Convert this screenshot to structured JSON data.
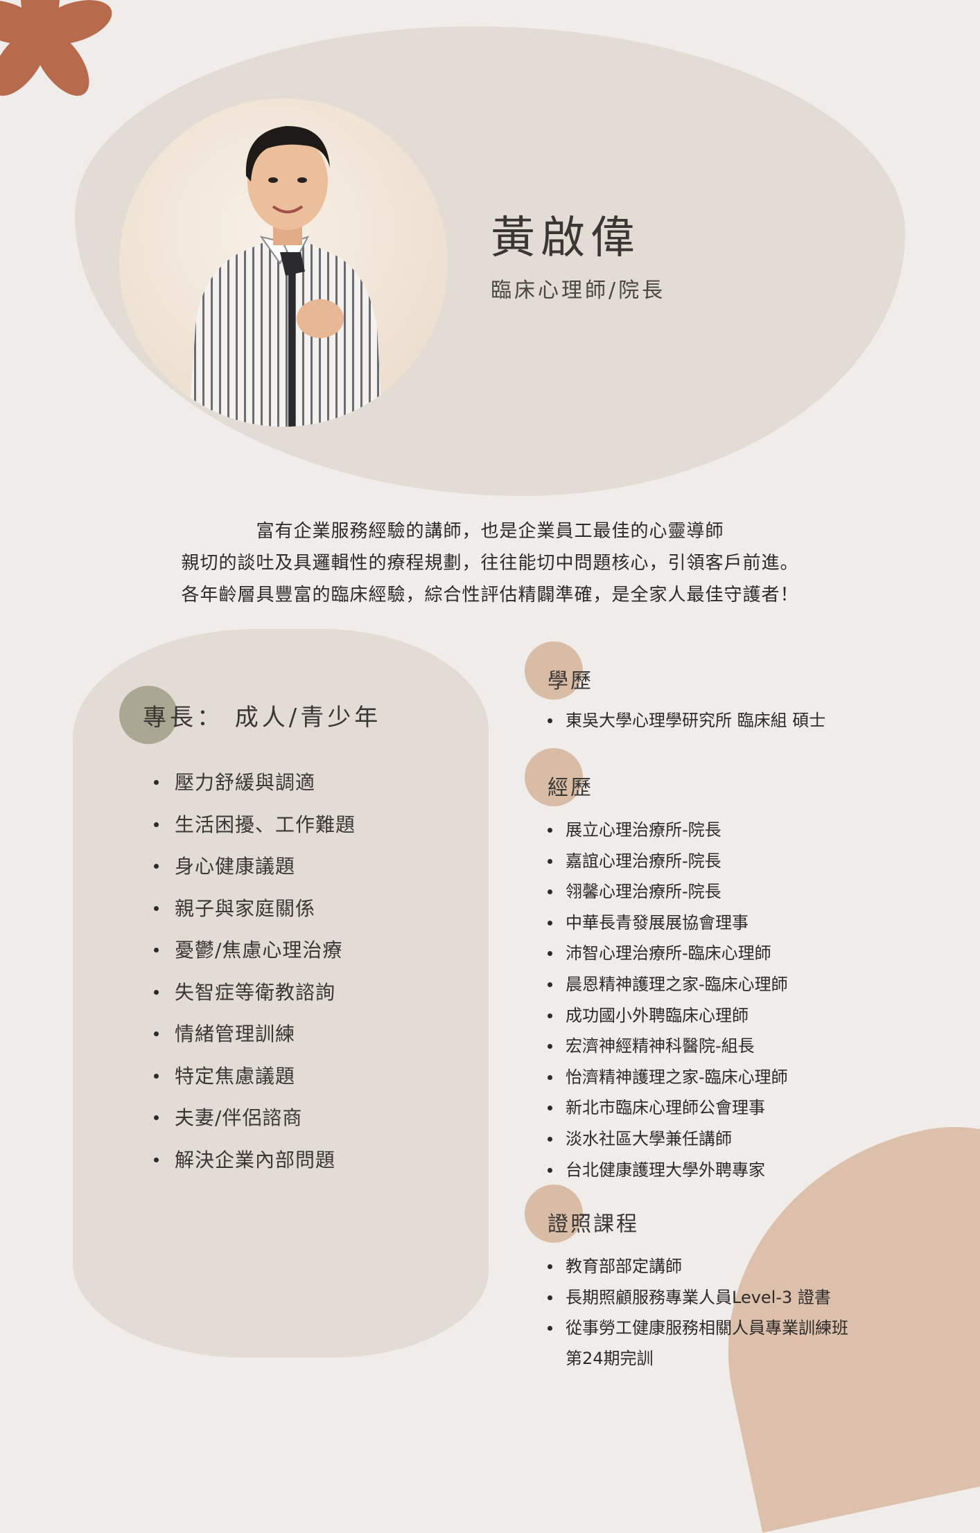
{
  "profile": {
    "name": "黃啟偉",
    "title": "臨床心理師/院長"
  },
  "intro": {
    "lines": [
      "富有企業服務經驗的講師，也是企業員工最佳的心靈導師",
      "親切的談吐及具邏輯性的療程規劃，往往能切中問題核心，引領客戶前進。",
      "各年齡層具豐富的臨床經驗，綜合性評估精闢準確，是全家人最佳守護者！"
    ]
  },
  "specialty": {
    "heading": "專長： 成人/青少年",
    "items": [
      "壓力舒緩與調適",
      "生活困擾、工作難題",
      "身心健康議題",
      "親子與家庭關係",
      "憂鬱/焦慮心理治療",
      "失智症等衛教諮詢",
      "情緒管理訓練",
      "特定焦慮議題",
      "夫妻/伴侶諮商",
      "解決企業內部問題"
    ]
  },
  "education": {
    "heading": "學歷",
    "items": [
      "東吳大學心理學研究所 臨床組 碩士"
    ]
  },
  "experience": {
    "heading": "經歷",
    "items": [
      "展立心理治療所-院長",
      "嘉誼心理治療所-院長",
      "翎馨心理治療所-院長",
      "中華長青發展展協會理事",
      "沛智心理治療所-臨床心理師",
      "晨恩精神護理之家-臨床心理師",
      "成功國小外聘臨床心理師",
      "宏濟神經精神科醫院-組長",
      "怡濟精神護理之家-臨床心理師",
      "新北市臨床心理師公會理事",
      "淡水社區大學兼任講師",
      "台北健康護理大學外聘專家"
    ]
  },
  "certification": {
    "heading": "證照課程",
    "items": [
      "教育部部定講師",
      "長期照顧服務專業人員Level-3 證書"
    ],
    "item3_line1": "從事勞工健康服務相關人員專業訓練班",
    "item3_line2": "第24期完訓"
  },
  "colors": {
    "background": "#efecea",
    "blob": "#e3dcd4",
    "accent_flower": "#b86a4c",
    "accent_dot": "#d9bca6",
    "accent_dot_green": "#a9a692",
    "corner": "#dcc0ac"
  },
  "icons": {
    "flower": "flower-icon",
    "photo": "portrait-photo"
  }
}
